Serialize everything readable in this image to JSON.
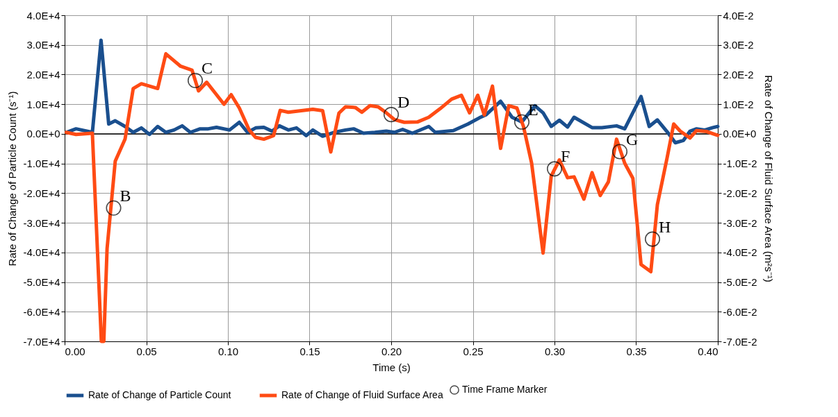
{
  "chart_data": {
    "type": "line",
    "xlabel": "Time (s)",
    "ylabel": "Rate of Change of Particle Count (s⁻¹)",
    "y2label": "Rate of Change of Fluid Surface Area (m²s⁻¹)",
    "xlim": [
      0,
      0.4
    ],
    "xticks": [
      {
        "value": 0,
        "label": "0.00"
      },
      {
        "value": 0.05,
        "label": "0.05"
      },
      {
        "value": 0.1,
        "label": "0.10"
      },
      {
        "value": 0.15,
        "label": "0.15"
      },
      {
        "value": 0.2,
        "label": "0.20"
      },
      {
        "value": 0.25,
        "label": "0.25"
      },
      {
        "value": 0.3,
        "label": "0.30"
      },
      {
        "value": 0.35,
        "label": "0.35"
      },
      {
        "value": 0.4,
        "label": "0.40"
      }
    ],
    "ylim": [
      -70000,
      40000
    ],
    "yticks": [
      {
        "value": -70000,
        "label": "-7.0E+4"
      },
      {
        "value": -60000,
        "label": "-6.0E+4"
      },
      {
        "value": -50000,
        "label": "-5.0E+4"
      },
      {
        "value": -40000,
        "label": "-4.0E+4"
      },
      {
        "value": -30000,
        "label": "-3.0E+4"
      },
      {
        "value": -20000,
        "label": "-2.0E+4"
      },
      {
        "value": -10000,
        "label": "-1.0E+4"
      },
      {
        "value": 0,
        "label": "0.0E+0"
      },
      {
        "value": 10000,
        "label": "1.0E+4"
      },
      {
        "value": 20000,
        "label": "2.0E+4"
      },
      {
        "value": 30000,
        "label": "3.0E+4"
      },
      {
        "value": 40000,
        "label": "4.0E+4"
      }
    ],
    "y2lim": [
      -0.07,
      0.04
    ],
    "y2ticks": [
      {
        "value": -0.07,
        "label": "-7.0E-2"
      },
      {
        "value": -0.06,
        "label": "-6.0E-2"
      },
      {
        "value": -0.05,
        "label": "-5.0E-2"
      },
      {
        "value": -0.04,
        "label": "-4.0E-2"
      },
      {
        "value": -0.03,
        "label": "-3.0E-2"
      },
      {
        "value": -0.02,
        "label": "-2.0E-2"
      },
      {
        "value": -0.01,
        "label": "-1.0E-2"
      },
      {
        "value": 0,
        "label": "0.0E+0"
      },
      {
        "value": 0.01,
        "label": "1.0E-2"
      },
      {
        "value": 0.02,
        "label": "2.0E-2"
      },
      {
        "value": 0.03,
        "label": "3.0E-2"
      },
      {
        "value": 0.04,
        "label": "4.0E-2"
      }
    ],
    "grid": true,
    "legend": "bottom",
    "line_style": "solid",
    "ref_lines": [
      {
        "axis": "y",
        "value": 0,
        "color": "#000000"
      }
    ],
    "series": [
      {
        "name": "Rate of Change of Particle Count",
        "color": "#1a4f8e",
        "x": [
          0.001,
          0.007,
          0.017,
          0.0223,
          0.027,
          0.031,
          0.037,
          0.042,
          0.047,
          0.052,
          0.057,
          0.062,
          0.067,
          0.072,
          0.077,
          0.083,
          0.088,
          0.093,
          0.101,
          0.107,
          0.112,
          0.117,
          0.122,
          0.127,
          0.1315,
          0.137,
          0.142,
          0.148,
          0.152,
          0.158,
          0.165,
          0.172,
          0.177,
          0.183,
          0.19,
          0.197,
          0.202,
          0.207,
          0.213,
          0.223,
          0.227,
          0.238,
          0.247,
          0.254,
          0.258,
          0.267,
          0.274,
          0.28,
          0.288,
          0.293,
          0.298,
          0.303,
          0.308,
          0.312,
          0.323,
          0.329,
          0.338,
          0.343,
          0.353,
          0.358,
          0.363,
          0.37,
          0.374,
          0.379,
          0.383,
          0.387,
          0.392,
          0.397,
          0.4
        ],
        "values": [
          500,
          1700,
          500,
          31600,
          3300,
          4400,
          2500,
          500,
          2000,
          -200,
          2500,
          500,
          1300,
          2700,
          500,
          1700,
          1700,
          2200,
          1300,
          3900,
          500,
          2000,
          2200,
          900,
          2700,
          1300,
          2000,
          -600,
          1300,
          -800,
          500,
          1300,
          1700,
          200,
          500,
          900,
          500,
          1500,
          200,
          2500,
          500,
          1100,
          3300,
          5400,
          6400,
          11000,
          5600,
          4000,
          9500,
          7100,
          2500,
          4600,
          2300,
          5600,
          2100,
          2100,
          2700,
          1700,
          12600,
          2500,
          4700,
          0,
          -3000,
          -2200,
          900,
          1700,
          1300,
          2100,
          2500
        ]
      },
      {
        "name": "Rate of Change of Fluid Surface Area",
        "axis": "y2",
        "color": "#ff4b14",
        "x": [
          0.001,
          0.007,
          0.017,
          0.0225,
          0.024,
          0.026,
          0.031,
          0.037,
          0.042,
          0.047,
          0.057,
          0.062,
          0.071,
          0.078,
          0.082,
          0.087,
          0.0976,
          0.102,
          0.107,
          0.113,
          0.117,
          0.122,
          0.128,
          0.132,
          0.137,
          0.152,
          0.158,
          0.163,
          0.168,
          0.172,
          0.178,
          0.182,
          0.187,
          0.192,
          0.197,
          0.202,
          0.208,
          0.216,
          0.223,
          0.23,
          0.237,
          0.243,
          0.248,
          0.253,
          0.257,
          0.262,
          0.267,
          0.272,
          0.277,
          0.281,
          0.286,
          0.293,
          0.298,
          0.303,
          0.308,
          0.312,
          0.318,
          0.323,
          0.328,
          0.333,
          0.338,
          0.343,
          0.348,
          0.353,
          0.359,
          0.363,
          0.369,
          0.373,
          0.377,
          0.383,
          0.387,
          0.393,
          0.4
        ],
        "values": [
          0.0005,
          -0.0002,
          0.0002,
          -0.07,
          -0.07,
          -0.0387,
          -0.0092,
          -0.0018,
          0.0153,
          0.0169,
          0.0153,
          0.027,
          0.0228,
          0.0215,
          0.0145,
          0.0174,
          0.01,
          0.0132,
          0.0087,
          0.0013,
          -0.0012,
          -0.0018,
          -0.0006,
          0.0079,
          0.0073,
          0.0083,
          0.0078,
          -0.0061,
          0.007,
          0.0091,
          0.0089,
          0.0073,
          0.0095,
          0.0091,
          0.0071,
          0.0048,
          0.0039,
          0.004,
          0.0056,
          0.0085,
          0.0117,
          0.013,
          0.0071,
          0.013,
          0.0064,
          0.0161,
          -0.0049,
          0.0095,
          0.0087,
          0.0025,
          -0.0099,
          -0.0402,
          -0.0142,
          -0.0088,
          -0.0148,
          -0.0145,
          -0.022,
          -0.0131,
          -0.0208,
          -0.0162,
          -0.0018,
          -0.0099,
          -0.015,
          -0.0441,
          -0.0465,
          -0.0239,
          -0.008,
          0.0033,
          0.0009,
          -0.0014,
          0.0011,
          0.0008,
          -0.0005
        ]
      },
      {
        "name": "Time Frame Marker",
        "type": "scatter",
        "axis": "y2",
        "marker": "circle",
        "color": "#000000",
        "x": [
          0.03,
          0.08,
          0.2,
          0.28,
          0.3,
          0.34,
          0.36
        ],
        "values": [
          -0.025,
          0.018,
          0.0065,
          0.004,
          -0.0118,
          -0.006,
          -0.0355
        ],
        "value_labels": [
          "B",
          "C",
          "D",
          "E",
          "F",
          "G",
          "H"
        ]
      }
    ]
  }
}
